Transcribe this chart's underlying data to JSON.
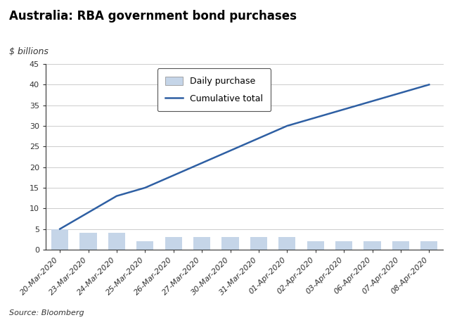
{
  "title": "Australia: RBA government bond purchases",
  "ylabel": "$ billions",
  "source": "Source: Bloomberg",
  "categories": [
    "20-Mar-2020",
    "23-Mar-2020",
    "24-Mar-2020",
    "25-Mar-2020",
    "26-Mar-2020",
    "27-Mar-2020",
    "30-Mar-2020",
    "31-Mar-2020",
    "01-Apr-2020",
    "02-Apr-2020",
    "03-Apr-2020",
    "06-Apr-2020",
    "07-Apr-2020",
    "08-Apr-2020"
  ],
  "daily_purchases": [
    5.0,
    4.0,
    4.0,
    2.0,
    3.0,
    3.0,
    3.0,
    3.0,
    3.0,
    2.0,
    2.0,
    2.0,
    2.0,
    2.0
  ],
  "cumulative": [
    5.0,
    9.0,
    13.0,
    15.0,
    18.0,
    21.0,
    24.0,
    27.0,
    30.0,
    32.0,
    34.0,
    36.0,
    38.0,
    40.0
  ],
  "ylim": [
    0,
    45
  ],
  "yticks": [
    0,
    5,
    10,
    15,
    20,
    25,
    30,
    35,
    40,
    45
  ],
  "bar_color": "#c5d5e8",
  "line_color": "#2e5fa3",
  "grid_color": "#cccccc",
  "title_fontsize": 12,
  "ylabel_fontsize": 9,
  "tick_fontsize": 8,
  "source_fontsize": 8,
  "legend_daily": "Daily purchase",
  "legend_cumulative": "Cumulative total",
  "legend_fontsize": 9
}
